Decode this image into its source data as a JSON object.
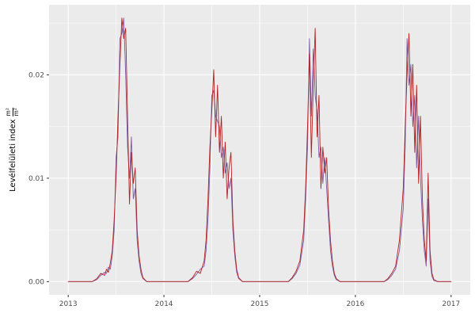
{
  "chart_data": {
    "type": "line",
    "title": "",
    "xlabel": "",
    "ylabel": "Levélfelületi index m²/m²",
    "ylabel_text": "Levélfelületi index",
    "ylabel_frac_num": "m²",
    "ylabel_frac_den": "m²",
    "legend": "none",
    "grid": true,
    "panel_bg": "#EBEBEB",
    "grid_color": "#FFFFFF",
    "tick_label_color": "#4D4D4D",
    "tick_mark_color": "#333333",
    "xlim": [
      2012.8,
      2017.2
    ],
    "ylim": [
      -0.001275,
      0.026775
    ],
    "x_ticks": {
      "values": [
        2013,
        2014,
        2015,
        2016,
        2017
      ],
      "labels": [
        "2013",
        "2014",
        "2015",
        "2016",
        "2017"
      ]
    },
    "x_minor": [
      2013.5,
      2014.5,
      2015.5,
      2016.5
    ],
    "y_ticks": {
      "values": [
        0,
        0.01,
        0.02
      ],
      "labels": [
        "0.00",
        "0.01",
        "0.02"
      ]
    },
    "y_minor": [
      0.005,
      0.015,
      0.025
    ],
    "x": [
      2013.0,
      2013.25,
      2013.3,
      2013.34,
      2013.38,
      2013.4,
      2013.42,
      2013.44,
      2013.46,
      2013.48,
      2013.5,
      2013.52,
      2013.54,
      2013.56,
      2013.58,
      2013.6,
      2013.62,
      2013.64,
      2013.66,
      2013.68,
      2013.7,
      2013.72,
      2013.74,
      2013.76,
      2013.78,
      2013.82,
      2014.25,
      2014.3,
      2014.34,
      2014.38,
      2014.42,
      2014.44,
      2014.46,
      2014.48,
      2014.5,
      2014.52,
      2014.54,
      2014.56,
      2014.58,
      2014.6,
      2014.62,
      2014.64,
      2014.66,
      2014.68,
      2014.7,
      2014.72,
      2014.74,
      2014.76,
      2014.78,
      2014.82,
      2015.3,
      2015.34,
      2015.38,
      2015.42,
      2015.46,
      2015.48,
      2015.5,
      2015.52,
      2015.54,
      2015.56,
      2015.58,
      2015.6,
      2015.62,
      2015.64,
      2015.66,
      2015.68,
      2015.7,
      2015.72,
      2015.74,
      2015.76,
      2015.78,
      2015.8,
      2015.84,
      2016.3,
      2016.34,
      2016.38,
      2016.42,
      2016.46,
      2016.5,
      2016.52,
      2016.54,
      2016.56,
      2016.58,
      2016.6,
      2016.62,
      2016.64,
      2016.66,
      2016.68,
      2016.7,
      2016.72,
      2016.74,
      2016.76,
      2016.78,
      2016.8,
      2016.82,
      2016.86,
      2017.0
    ],
    "series": [
      {
        "name": "series-purple",
        "color": "#7D5BA6",
        "values": [
          0,
          0,
          0.0002,
          0.0006,
          0.0009,
          0.0008,
          0.0014,
          0.0012,
          0.0025,
          0.005,
          0.012,
          0.014,
          0.0235,
          0.024,
          0.0255,
          0.02,
          0.013,
          0.01,
          0.014,
          0.008,
          0.009,
          0.004,
          0.002,
          0.0008,
          0.0003,
          0,
          0,
          0.0003,
          0.0007,
          0.0012,
          0.0015,
          0.003,
          0.006,
          0.011,
          0.018,
          0.0185,
          0.016,
          0.0155,
          0.015,
          0.012,
          0.013,
          0.0105,
          0.0115,
          0.009,
          0.01,
          0.005,
          0.0025,
          0.0009,
          0.0003,
          0,
          0,
          0.0003,
          0.0008,
          0.0016,
          0.004,
          0.008,
          0.013,
          0.0235,
          0.016,
          0.0225,
          0.018,
          0.0165,
          0.012,
          0.013,
          0.0095,
          0.012,
          0.009,
          0.006,
          0.003,
          0.0015,
          0.0006,
          0.0002,
          0,
          0,
          0.0002,
          0.0006,
          0.0012,
          0.003,
          0.007,
          0.013,
          0.0235,
          0.019,
          0.021,
          0.015,
          0.018,
          0.011,
          0.016,
          0.01,
          0.006,
          0.003,
          0.0015,
          0.008,
          0.002,
          0.0005,
          0.0001,
          0,
          0
        ]
      },
      {
        "name": "series-red",
        "color": "#B22222",
        "values": [
          0,
          0,
          0.0003,
          0.0008,
          0.0006,
          0.0012,
          0.0009,
          0.0018,
          0.003,
          0.006,
          0.01,
          0.016,
          0.021,
          0.0255,
          0.0235,
          0.0245,
          0.016,
          0.0075,
          0.0125,
          0.0095,
          0.011,
          0.005,
          0.0025,
          0.0012,
          0.0004,
          0,
          0,
          0.0004,
          0.001,
          0.0008,
          0.002,
          0.004,
          0.008,
          0.013,
          0.0165,
          0.0205,
          0.014,
          0.019,
          0.0125,
          0.016,
          0.01,
          0.0135,
          0.008,
          0.011,
          0.0125,
          0.006,
          0.003,
          0.0012,
          0.0004,
          0,
          0,
          0.0004,
          0.001,
          0.002,
          0.005,
          0.009,
          0.015,
          0.022,
          0.012,
          0.019,
          0.0245,
          0.014,
          0.018,
          0.009,
          0.013,
          0.0105,
          0.012,
          0.007,
          0.004,
          0.002,
          0.0008,
          0.0003,
          0,
          0,
          0.0003,
          0.0008,
          0.0015,
          0.004,
          0.009,
          0.015,
          0.02,
          0.024,
          0.016,
          0.021,
          0.0125,
          0.019,
          0.0095,
          0.016,
          0.008,
          0.004,
          0.002,
          0.0105,
          0.003,
          0.0008,
          0.0002,
          0,
          0
        ]
      }
    ]
  }
}
